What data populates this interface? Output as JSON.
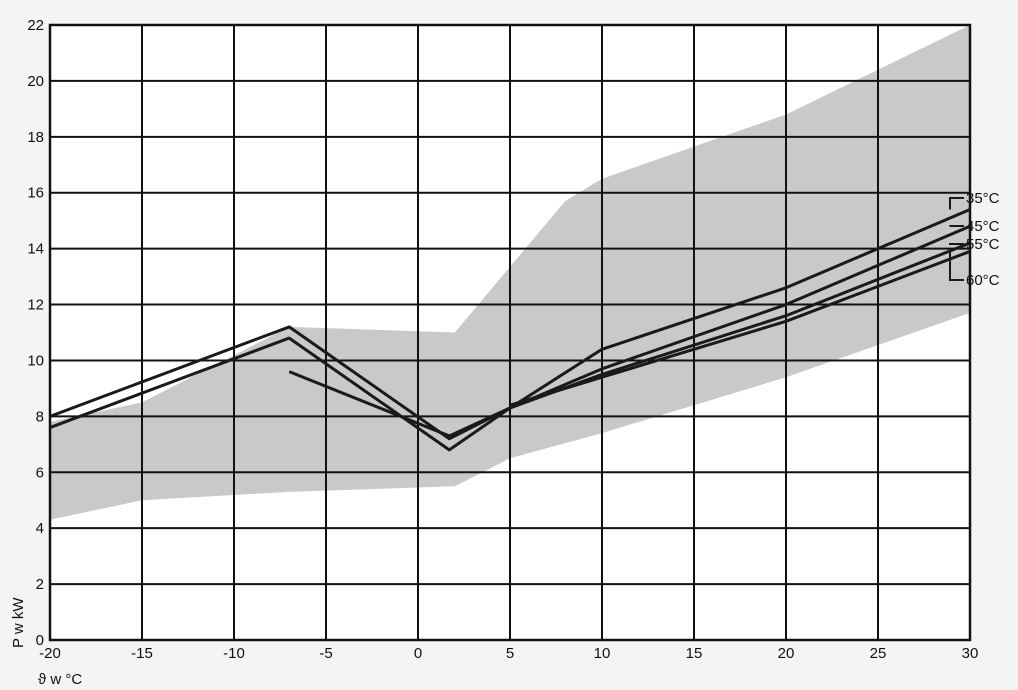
{
  "chart_data": {
    "type": "line",
    "title": "",
    "xlabel": "ϑ w °C",
    "ylabel": "P w kW",
    "xlim": [
      -20,
      30
    ],
    "ylim": [
      0,
      22
    ],
    "xticks": [
      -20,
      -15,
      -10,
      -5,
      0,
      5,
      10,
      15,
      20,
      25,
      30
    ],
    "yticks": [
      0,
      2,
      4,
      6,
      8,
      10,
      12,
      14,
      16,
      18,
      20,
      22
    ],
    "grid": true,
    "legend": "right-edge labels",
    "colors": {
      "band": "#c9c9c9",
      "lines": "#1a1a1a",
      "grid": "#111111",
      "background": "#ffffff"
    },
    "band": {
      "upper": [
        {
          "x": -20,
          "y": 7.8
        },
        {
          "x": -15,
          "y": 8.5
        },
        {
          "x": -7,
          "y": 11.2
        },
        {
          "x": 2,
          "y": 11.0
        },
        {
          "x": 8,
          "y": 15.7
        },
        {
          "x": 10,
          "y": 16.5
        },
        {
          "x": 20,
          "y": 18.8
        },
        {
          "x": 30,
          "y": 22.0
        }
      ],
      "lower": [
        {
          "x": -20,
          "y": 4.3
        },
        {
          "x": -15,
          "y": 5.0
        },
        {
          "x": -7,
          "y": 5.3
        },
        {
          "x": 2,
          "y": 5.5
        },
        {
          "x": 5,
          "y": 6.5
        },
        {
          "x": 10,
          "y": 7.4
        },
        {
          "x": 20,
          "y": 9.4
        },
        {
          "x": 30,
          "y": 11.7
        }
      ]
    },
    "series": [
      {
        "name": "35°C",
        "points": [
          {
            "x": -20,
            "y": 8.0
          },
          {
            "x": -7,
            "y": 11.2
          },
          {
            "x": 1.7,
            "y": 7.2
          },
          {
            "x": 5,
            "y": 8.3
          },
          {
            "x": 10,
            "y": 10.4
          },
          {
            "x": 20,
            "y": 12.6
          },
          {
            "x": 30,
            "y": 15.4
          }
        ]
      },
      {
        "name": "45°C",
        "points": [
          {
            "x": -20,
            "y": 7.6
          },
          {
            "x": -7,
            "y": 10.8
          },
          {
            "x": 1.7,
            "y": 6.8
          },
          {
            "x": 5,
            "y": 8.3
          },
          {
            "x": 10,
            "y": 9.7
          },
          {
            "x": 20,
            "y": 12.0
          },
          {
            "x": 30,
            "y": 14.8
          }
        ]
      },
      {
        "name": "55°C",
        "points": [
          {
            "x": -7,
            "y": 9.6
          },
          {
            "x": 1.7,
            "y": 7.3
          },
          {
            "x": 5,
            "y": 8.3
          },
          {
            "x": 10,
            "y": 9.5
          },
          {
            "x": 20,
            "y": 11.6
          },
          {
            "x": 30,
            "y": 14.2
          }
        ]
      },
      {
        "name": "60°C",
        "points": [
          {
            "x": 5,
            "y": 8.4
          },
          {
            "x": 10,
            "y": 9.4
          },
          {
            "x": 20,
            "y": 11.4
          },
          {
            "x": 30,
            "y": 13.9
          }
        ]
      }
    ]
  }
}
